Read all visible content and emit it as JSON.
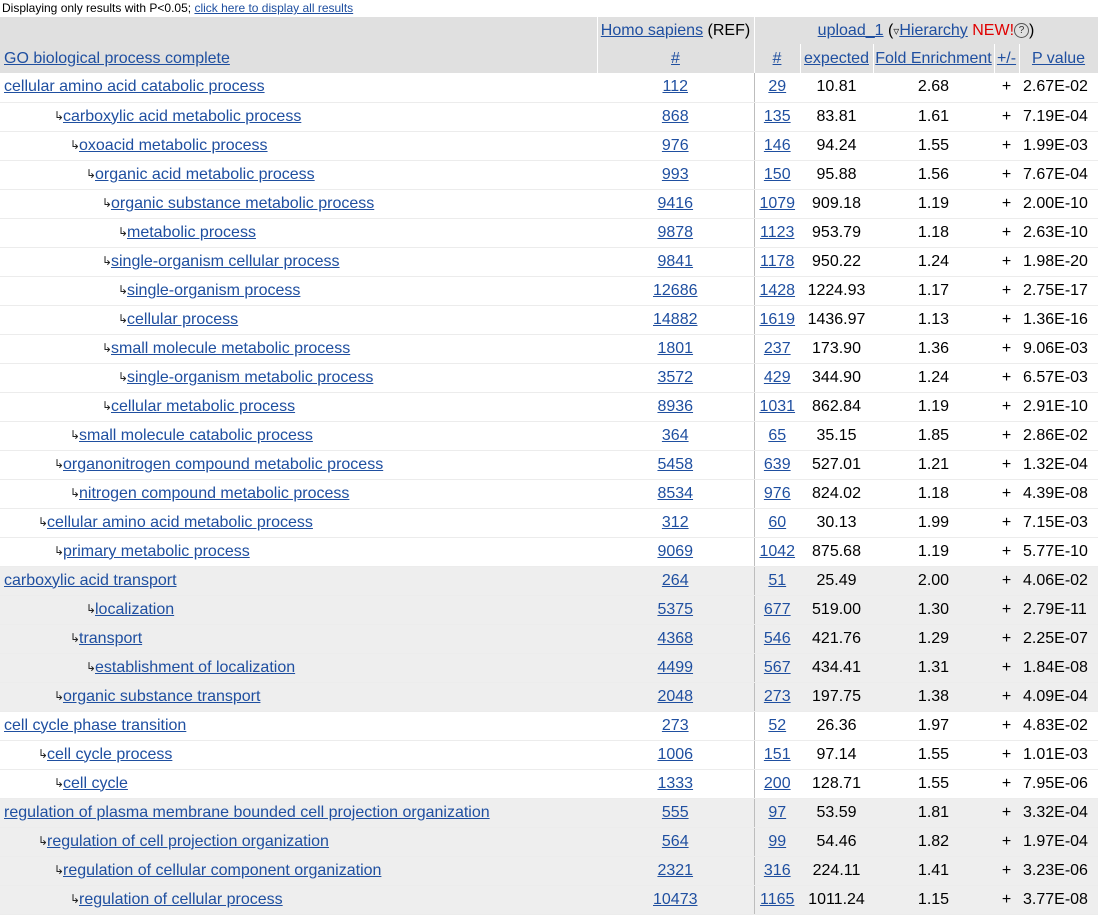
{
  "notice": {
    "prefix": "Displaying only results with P<0.05; ",
    "link": "click here to display all results"
  },
  "header": {
    "homo_sapiens": "Homo sapiens",
    "ref": "(REF)",
    "upload": "upload_1",
    "hierarchy_open": "(",
    "hierarchy_icon": "down-triangle-icon",
    "hierarchy": "Hierarchy",
    "new": "NEW!",
    "help_icon": "help-circle-icon",
    "help_glyph": "?",
    "hierarchy_close": ")",
    "col_term": "GO biological process complete",
    "col_ref_count": "#",
    "col_count": "#",
    "col_expected": "expected",
    "col_fold": "Fold Enrichment",
    "col_pm": "+/-",
    "col_pvalue": "P value"
  },
  "rows": [
    {
      "term": "cellular amino acid catabolic process",
      "level": 0,
      "ref": "112",
      "count": "29",
      "expected": "10.81",
      "fold": "2.68",
      "pm": "+",
      "pvalue": "2.67E-02",
      "group": 1
    },
    {
      "term": "carboxylic acid metabolic process",
      "level": 2,
      "ref": "868",
      "count": "135",
      "expected": "83.81",
      "fold": "1.61",
      "pm": "+",
      "pvalue": "7.19E-04",
      "group": 1
    },
    {
      "term": "oxoacid metabolic process",
      "level": 3,
      "ref": "976",
      "count": "146",
      "expected": "94.24",
      "fold": "1.55",
      "pm": "+",
      "pvalue": "1.99E-03",
      "group": 1
    },
    {
      "term": "organic acid metabolic process",
      "level": 4,
      "ref": "993",
      "count": "150",
      "expected": "95.88",
      "fold": "1.56",
      "pm": "+",
      "pvalue": "7.67E-04",
      "group": 1
    },
    {
      "term": "organic substance metabolic process",
      "level": 5,
      "ref": "9416",
      "count": "1079",
      "expected": "909.18",
      "fold": "1.19",
      "pm": "+",
      "pvalue": "2.00E-10",
      "group": 1
    },
    {
      "term": "metabolic process",
      "level": 6,
      "ref": "9878",
      "count": "1123",
      "expected": "953.79",
      "fold": "1.18",
      "pm": "+",
      "pvalue": "2.63E-10",
      "group": 1
    },
    {
      "term": "single-organism cellular process",
      "level": 5,
      "ref": "9841",
      "count": "1178",
      "expected": "950.22",
      "fold": "1.24",
      "pm": "+",
      "pvalue": "1.98E-20",
      "group": 1
    },
    {
      "term": "single-organism process",
      "level": 6,
      "ref": "12686",
      "count": "1428",
      "expected": "1224.93",
      "fold": "1.17",
      "pm": "+",
      "pvalue": "2.75E-17",
      "group": 1
    },
    {
      "term": "cellular process",
      "level": 6,
      "ref": "14882",
      "count": "1619",
      "expected": "1436.97",
      "fold": "1.13",
      "pm": "+",
      "pvalue": "1.36E-16",
      "group": 1
    },
    {
      "term": "small molecule metabolic process",
      "level": 5,
      "ref": "1801",
      "count": "237",
      "expected": "173.90",
      "fold": "1.36",
      "pm": "+",
      "pvalue": "9.06E-03",
      "group": 1
    },
    {
      "term": "single-organism metabolic process",
      "level": 6,
      "ref": "3572",
      "count": "429",
      "expected": "344.90",
      "fold": "1.24",
      "pm": "+",
      "pvalue": "6.57E-03",
      "group": 1
    },
    {
      "term": "cellular metabolic process",
      "level": 5,
      "ref": "8936",
      "count": "1031",
      "expected": "862.84",
      "fold": "1.19",
      "pm": "+",
      "pvalue": "2.91E-10",
      "group": 1
    },
    {
      "term": "small molecule catabolic process",
      "level": 3,
      "ref": "364",
      "count": "65",
      "expected": "35.15",
      "fold": "1.85",
      "pm": "+",
      "pvalue": "2.86E-02",
      "group": 1
    },
    {
      "term": "organonitrogen compound metabolic process",
      "level": 2,
      "ref": "5458",
      "count": "639",
      "expected": "527.01",
      "fold": "1.21",
      "pm": "+",
      "pvalue": "1.32E-04",
      "group": 1
    },
    {
      "term": "nitrogen compound metabolic process",
      "level": 3,
      "ref": "8534",
      "count": "976",
      "expected": "824.02",
      "fold": "1.18",
      "pm": "+",
      "pvalue": "4.39E-08",
      "group": 1
    },
    {
      "term": "cellular amino acid metabolic process",
      "level": 1,
      "ref": "312",
      "count": "60",
      "expected": "30.13",
      "fold": "1.99",
      "pm": "+",
      "pvalue": "7.15E-03",
      "group": 1
    },
    {
      "term": "primary metabolic process",
      "level": 2,
      "ref": "9069",
      "count": "1042",
      "expected": "875.68",
      "fold": "1.19",
      "pm": "+",
      "pvalue": "5.77E-10",
      "group": 1
    },
    {
      "term": "carboxylic acid transport",
      "level": 0,
      "ref": "264",
      "count": "51",
      "expected": "25.49",
      "fold": "2.00",
      "pm": "+",
      "pvalue": "4.06E-02",
      "group": 2
    },
    {
      "term": "localization",
      "level": 4,
      "ref": "5375",
      "count": "677",
      "expected": "519.00",
      "fold": "1.30",
      "pm": "+",
      "pvalue": "2.79E-11",
      "group": 2
    },
    {
      "term": "transport",
      "level": 3,
      "ref": "4368",
      "count": "546",
      "expected": "421.76",
      "fold": "1.29",
      "pm": "+",
      "pvalue": "2.25E-07",
      "group": 2
    },
    {
      "term": "establishment of localization",
      "level": 4,
      "ref": "4499",
      "count": "567",
      "expected": "434.41",
      "fold": "1.31",
      "pm": "+",
      "pvalue": "1.84E-08",
      "group": 2
    },
    {
      "term": "organic substance transport",
      "level": 2,
      "ref": "2048",
      "count": "273",
      "expected": "197.75",
      "fold": "1.38",
      "pm": "+",
      "pvalue": "4.09E-04",
      "group": 2
    },
    {
      "term": "cell cycle phase transition",
      "level": 0,
      "ref": "273",
      "count": "52",
      "expected": "26.36",
      "fold": "1.97",
      "pm": "+",
      "pvalue": "4.83E-02",
      "group": 3
    },
    {
      "term": "cell cycle process",
      "level": 1,
      "ref": "1006",
      "count": "151",
      "expected": "97.14",
      "fold": "1.55",
      "pm": "+",
      "pvalue": "1.01E-03",
      "group": 3
    },
    {
      "term": "cell cycle",
      "level": 2,
      "ref": "1333",
      "count": "200",
      "expected": "128.71",
      "fold": "1.55",
      "pm": "+",
      "pvalue": "7.95E-06",
      "group": 3
    },
    {
      "term": "regulation of plasma membrane bounded cell projection organization",
      "level": 0,
      "ref": "555",
      "count": "97",
      "expected": "53.59",
      "fold": "1.81",
      "pm": "+",
      "pvalue": "3.32E-04",
      "group": 4
    },
    {
      "term": "regulation of cell projection organization",
      "level": 1,
      "ref": "564",
      "count": "99",
      "expected": "54.46",
      "fold": "1.82",
      "pm": "+",
      "pvalue": "1.97E-04",
      "group": 4
    },
    {
      "term": "regulation of cellular component organization",
      "level": 2,
      "ref": "2321",
      "count": "316",
      "expected": "224.11",
      "fold": "1.41",
      "pm": "+",
      "pvalue": "3.23E-06",
      "group": 4
    },
    {
      "term": "regulation of cellular process",
      "level": 3,
      "ref": "10473",
      "count": "1165",
      "expected": "1011.24",
      "fold": "1.15",
      "pm": "+",
      "pvalue": "3.77E-08",
      "group": 4
    }
  ],
  "colors": {
    "link": "#1f4fa0",
    "header_bg": "#e0e0e0",
    "group_alt_bg": "#eeeeee",
    "new_badge": "#e00000"
  }
}
